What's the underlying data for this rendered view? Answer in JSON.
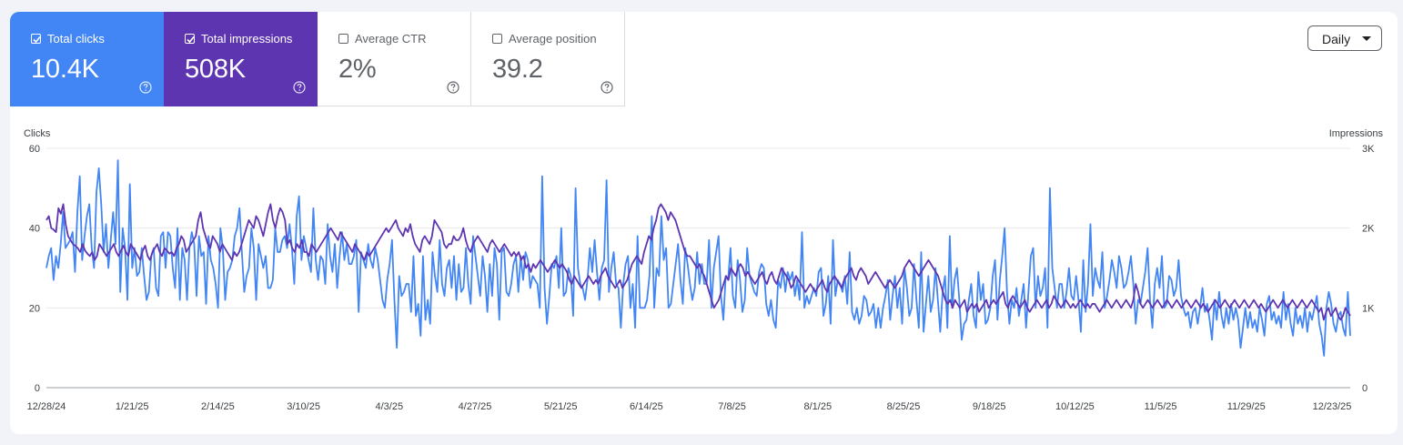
{
  "metrics": [
    {
      "label": "Total clicks",
      "value": "10.4K",
      "selected": true,
      "color": "#4285f4"
    },
    {
      "label": "Total impressions",
      "value": "508K",
      "selected": true,
      "color": "#5e35b1"
    },
    {
      "label": "Average CTR",
      "value": "2%",
      "selected": false,
      "color": "#ffffff"
    },
    {
      "label": "Average position",
      "value": "39.2",
      "selected": false,
      "color": "#ffffff"
    }
  ],
  "icons": {
    "checkbox": "checkbox-icon",
    "help": "help-circle-icon",
    "dropdown": "caret-down-icon"
  },
  "dropdown": {
    "label": "Daily"
  },
  "chart_data": {
    "type": "line",
    "title": "",
    "left_axis_label": "Clicks",
    "right_axis_label": "Impressions",
    "left_ylim": [
      0,
      60
    ],
    "right_ylim": [
      0,
      3000
    ],
    "left_ticks": [
      "0",
      "20",
      "40",
      "60"
    ],
    "right_ticks": [
      "0",
      "1K",
      "2K",
      "3K"
    ],
    "x_tick_labels": [
      "12/28/24",
      "1/21/25",
      "2/14/25",
      "3/10/25",
      "4/3/25",
      "4/27/25",
      "5/21/25",
      "6/14/25",
      "7/8/25",
      "8/1/25",
      "8/25/25",
      "9/18/25",
      "10/12/25",
      "11/5/25",
      "11/29/25",
      "12/23/25"
    ],
    "x_range": [
      "12/28/24",
      "12/25/25"
    ],
    "grid": true,
    "legend": "none",
    "series": [
      {
        "name": "Total clicks",
        "axis": "left",
        "color": "#4285f4",
        "values": [
          30,
          33,
          35,
          27,
          33,
          30,
          36,
          44,
          35,
          36,
          37,
          39,
          29,
          44,
          53,
          32,
          38,
          43,
          46,
          35,
          30,
          49,
          55,
          46,
          34,
          41,
          30,
          37,
          44,
          36,
          57,
          24,
          40,
          35,
          22,
          51,
          30,
          35,
          28,
          29,
          35,
          28,
          22,
          24,
          33,
          35,
          25,
          23,
          38,
          39,
          30,
          39,
          38,
          30,
          25,
          40,
          22,
          35,
          32,
          22,
          35,
          39,
          36,
          23,
          38,
          33,
          34,
          21,
          38,
          32,
          30,
          26,
          20,
          40,
          35,
          22,
          29,
          30,
          32,
          38,
          40,
          45,
          34,
          24,
          28,
          30,
          40,
          35,
          22,
          36,
          33,
          30,
          33,
          25,
          25,
          27,
          40,
          34,
          34,
          37,
          38,
          35,
          41,
          35,
          26,
          43,
          48,
          32,
          38,
          35,
          32,
          29,
          45,
          32,
          27,
          33,
          32,
          26,
          41,
          33,
          29,
          36,
          25,
          33,
          39,
          32,
          36,
          31,
          31,
          33,
          37,
          19,
          34,
          32,
          30,
          36,
          32,
          30,
          35,
          32,
          27,
          22,
          20,
          27,
          31,
          37,
          22,
          10,
          28,
          23,
          24,
          26,
          26,
          19,
          33,
          18,
          21,
          13,
          33,
          17,
          22,
          16,
          34,
          28,
          24,
          37,
          26,
          23,
          30,
          32,
          25,
          33,
          22,
          31,
          24,
          25,
          35,
          26,
          21,
          38,
          33,
          28,
          23,
          33,
          28,
          19,
          31,
          23,
          35,
          31,
          17,
          34,
          35,
          24,
          23,
          26,
          31,
          33,
          24,
          33,
          27,
          34,
          32,
          25,
          28,
          27,
          26,
          20,
          53,
          25,
          16,
          23,
          31,
          30,
          33,
          25,
          40,
          23,
          24,
          30,
          28,
          18,
          50,
          30,
          26,
          25,
          22,
          27,
          35,
          29,
          37,
          29,
          22,
          30,
          32,
          52,
          24,
          30,
          34,
          26,
          25,
          15,
          26,
          31,
          33,
          20,
          26,
          15,
          38,
          20,
          20,
          20,
          22,
          28,
          43,
          20,
          30,
          28,
          43,
          32,
          35,
          20,
          21,
          26,
          31,
          36,
          27,
          21,
          35,
          31,
          26,
          22,
          25,
          34,
          26,
          31,
          26,
          26,
          37,
          20,
          30,
          34,
          38,
          23,
          17,
          28,
          27,
          35,
          23,
          20,
          32,
          27,
          19,
          22,
          35,
          28,
          26,
          24,
          23,
          29,
          31,
          30,
          21,
          18,
          22,
          17,
          15,
          27,
          25,
          30,
          24,
          29,
          27,
          29,
          23,
          27,
          22,
          39,
          20,
          23,
          21,
          23,
          25,
          23,
          29,
          30,
          18,
          21,
          28,
          16,
          37,
          23,
          27,
          26,
          24,
          28,
          21,
          34,
          19,
          17,
          20,
          16,
          18,
          23,
          22,
          18,
          19,
          21,
          15,
          20,
          15,
          20,
          23,
          27,
          17,
          23,
          28,
          20,
          25,
          16,
          30,
          25,
          18,
          20,
          31,
          22,
          15,
          34,
          14,
          21,
          28,
          19,
          22,
          30,
          22,
          14,
          24,
          28,
          15,
          38,
          20,
          27,
          30,
          22,
          12,
          16,
          17,
          22,
          26,
          18,
          15,
          29,
          22,
          26,
          16,
          17,
          20,
          28,
          32,
          17,
          27,
          33,
          40,
          24,
          16,
          22,
          20,
          25,
          18,
          22,
          26,
          15,
          24,
          33,
          35,
          20,
          28,
          23,
          25,
          30,
          15,
          50,
          30,
          25,
          20,
          26,
          26,
          20,
          24,
          30,
          23,
          22,
          28,
          22,
          14,
          32,
          19,
          26,
          41,
          23,
          30,
          27,
          25,
          34,
          20,
          23,
          27,
          32,
          29,
          25,
          33,
          30,
          25,
          26,
          29,
          33,
          26,
          16,
          22,
          21,
          25,
          29,
          35,
          22,
          15,
          26,
          30,
          25,
          33,
          20,
          21,
          28,
          27,
          23,
          25,
          32,
          23,
          20,
          18,
          19,
          15,
          19,
          20,
          16,
          20,
          25,
          19,
          21,
          17,
          12,
          22,
          17,
          24,
          18,
          15,
          20,
          16,
          21,
          17,
          20,
          17,
          10,
          15,
          20,
          15,
          19,
          15,
          17,
          14,
          20,
          17,
          13,
          21,
          23,
          17,
          19,
          16,
          18,
          15,
          24,
          17,
          21,
          16,
          13,
          20,
          16,
          18,
          15,
          20,
          14,
          19,
          17,
          20,
          23,
          16,
          13,
          8,
          20,
          24,
          21,
          16,
          14,
          18,
          19,
          15,
          13,
          24,
          13
        ]
      },
      {
        "name": "Total impressions",
        "axis": "right",
        "color": "#5e35b1",
        "values": [
          2100,
          2150,
          2000,
          1980,
          1950,
          2250,
          2180,
          2300,
          2050,
          1900,
          1850,
          1800,
          1780,
          1750,
          1700,
          1800,
          1720,
          1680,
          1650,
          1700,
          1600,
          1650,
          1800,
          1750,
          1700,
          1650,
          1700,
          1750,
          1800,
          1700,
          1650,
          1720,
          1780,
          1700,
          1650,
          1800,
          1750,
          1700,
          1650,
          1600,
          1720,
          1780,
          1650,
          1600,
          1700,
          1750,
          1800,
          1700,
          1650,
          1750,
          1720,
          1680,
          1700,
          1650,
          1750,
          1800,
          1900,
          1850,
          1700,
          1750,
          1800,
          1850,
          1900,
          2100,
          2200,
          2000,
          1900,
          1800,
          1750,
          1900,
          1850,
          1800,
          1700,
          1800,
          1750,
          1700,
          1650,
          1600,
          1700,
          1650,
          1700,
          1800,
          1900,
          2000,
          2100,
          2050,
          2000,
          2150,
          2100,
          2000,
          1900,
          2050,
          2200,
          2300,
          2100,
          2000,
          2150,
          2250,
          2200,
          2100,
          1800,
          1850,
          1750,
          1700,
          1800,
          1750,
          1850,
          1700,
          1700,
          1650,
          1800,
          1750,
          1700,
          1750,
          1800,
          1850,
          1900,
          1950,
          2000,
          1950,
          1900,
          1850,
          1950,
          1900,
          1850,
          1800,
          1750,
          1700,
          1800,
          1750,
          1700,
          1650,
          1600,
          1700,
          1650,
          1700,
          1750,
          1800,
          1850,
          1900,
          1950,
          2000,
          1950,
          2000,
          2050,
          2100,
          2000,
          1950,
          1900,
          2000,
          1950,
          2050,
          1900,
          1800,
          1750,
          1700,
          1850,
          1900,
          1850,
          1800,
          1900,
          2100,
          2050,
          2000,
          1950,
          1800,
          1750,
          1800,
          1800,
          1900,
          1850,
          1850,
          1900,
          2000,
          1850,
          1750,
          1700,
          1800,
          1850,
          1900,
          1850,
          1800,
          1750,
          1700,
          1800,
          1850,
          1800,
          1750,
          1700,
          1750,
          1800,
          1750,
          1700,
          1650,
          1700,
          1650,
          1700,
          1600,
          1650,
          1500,
          1550,
          1450,
          1550,
          1500,
          1550,
          1600,
          1550,
          1500,
          1450,
          1500,
          1550,
          1600,
          1550,
          1500,
          1550,
          1500,
          1450,
          1350,
          1300,
          1400,
          1350,
          1300,
          1250,
          1300,
          1350,
          1400,
          1350,
          1300,
          1350,
          1300,
          1400,
          1450,
          1500,
          1400,
          1350,
          1300,
          1250,
          1300,
          1350,
          1250,
          1300,
          1350,
          1450,
          1550,
          1600,
          1650,
          1600,
          1550,
          1700,
          1800,
          1900,
          1850,
          2000,
          2100,
          2250,
          2300,
          2250,
          2200,
          2100,
          2200,
          2150,
          2100,
          2000,
          1900,
          1800,
          1700,
          1650,
          1650,
          1600,
          1550,
          1500,
          1550,
          1450,
          1400,
          1300,
          1200,
          1100,
          1000,
          1050,
          1100,
          1200,
          1300,
          1400,
          1350,
          1500,
          1450,
          1400,
          1500,
          1550,
          1500,
          1400,
          1450,
          1400,
          1350,
          1300,
          1350,
          1400,
          1450,
          1350,
          1300,
          1400,
          1450,
          1350,
          1300,
          1400,
          1500,
          1450,
          1400,
          1350,
          1250,
          1300,
          1400,
          1350,
          1300,
          1250,
          1200,
          1250,
          1300,
          1250,
          1200,
          1250,
          1300,
          1350,
          1250,
          1200,
          1300,
          1350,
          1400,
          1350,
          1300,
          1250,
          1350,
          1400,
          1450,
          1500,
          1400,
          1350,
          1450,
          1500,
          1450,
          1400,
          1300,
          1350,
          1400,
          1450,
          1400,
          1350,
          1300,
          1250,
          1300,
          1350,
          1300,
          1250,
          1300,
          1350,
          1400,
          1500,
          1550,
          1600,
          1550,
          1500,
          1450,
          1400,
          1450,
          1500,
          1550,
          1600,
          1550,
          1500,
          1450,
          1400,
          1300,
          1200,
          1100,
          1050,
          1100,
          1000,
          1100,
          1050,
          1000,
          1050,
          1100,
          950,
          1000,
          1050,
          1000,
          1050,
          950,
          1000,
          1050,
          1100,
          1000,
          1050,
          1100,
          1050,
          1100,
          1150,
          1200,
          1050,
          1000,
          1100,
          1150,
          1100,
          1050,
          1000,
          1050,
          1100,
          1000,
          950,
          1000,
          1050,
          1100,
          1050,
          1000,
          1050,
          1100,
          1000,
          1050,
          1150,
          1100,
          1050,
          1000,
          1050,
          1100,
          1050,
          1000,
          1050,
          1000,
          1050,
          1100,
          1050,
          1000,
          1050,
          1000,
          1050,
          1050,
          1000,
          950,
          1000,
          1050,
          1100,
          1050,
          1000,
          1050,
          1100,
          1050,
          1000,
          1050,
          1100,
          1050,
          1000,
          1100,
          1300,
          1200,
          1050,
          1000,
          1050,
          1100,
          1050,
          1000,
          1050,
          1100,
          1050,
          1000,
          1050,
          1100,
          1050,
          1000,
          1050,
          1100,
          1050,
          1000,
          1050,
          1100,
          1050,
          1000,
          1050,
          1100,
          1050,
          1000,
          1050,
          1000,
          950,
          1000,
          1050,
          1100,
          1050,
          1000,
          1050,
          1100,
          1050,
          1000,
          1050,
          1100,
          1050,
          1000,
          1050,
          1100,
          1050,
          1000,
          1050,
          1100,
          1050,
          1000,
          1050,
          1000,
          950,
          1000,
          1050,
          1100,
          1050,
          1000,
          1050,
          1100,
          1050,
          1000,
          1050,
          1100,
          1050,
          1000,
          1050,
          1100,
          1050,
          1000,
          1050,
          1100,
          1050,
          1000,
          950,
          1000,
          850,
          950,
          1000,
          900,
          950,
          1000,
          900,
          850,
          900,
          1000,
          950,
          900
        ]
      }
    ]
  }
}
